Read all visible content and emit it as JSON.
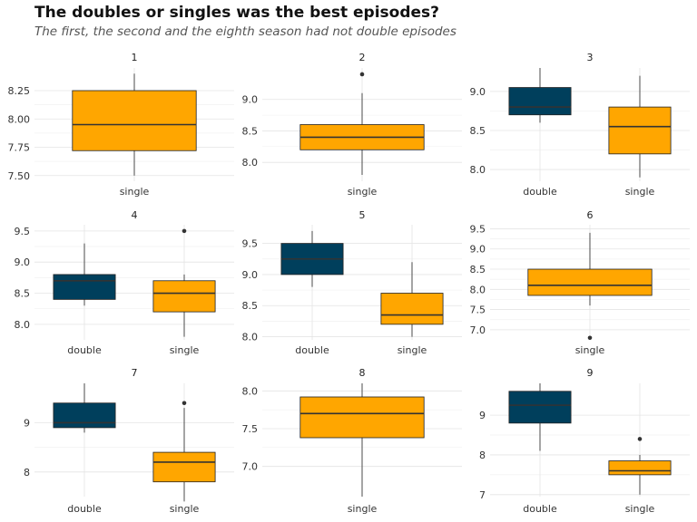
{
  "title": "The doubles or singles was the best episodes?",
  "subtitle": "The first, the second and the eighth season had not double episodes",
  "colors": {
    "double": "#003f5c",
    "single": "#ffa600"
  },
  "chart_data": {
    "type": "boxplot",
    "facets": [
      {
        "label": "1",
        "ylim": [
          7.45,
          8.45
        ],
        "yticks": [
          "7.50",
          "7.75",
          "8.00",
          "8.25"
        ],
        "boxes": [
          {
            "group": "single",
            "min": 7.5,
            "q1": 7.72,
            "median": 7.95,
            "q3": 8.25,
            "max": 8.4,
            "outliers": []
          }
        ]
      },
      {
        "label": "2",
        "ylim": [
          7.7,
          9.5
        ],
        "yticks": [
          "8.0",
          "8.5",
          "9.0"
        ],
        "boxes": [
          {
            "group": "single",
            "min": 7.8,
            "q1": 8.2,
            "median": 8.4,
            "q3": 8.6,
            "max": 9.1,
            "outliers": [
              9.4
            ]
          }
        ]
      },
      {
        "label": "3",
        "ylim": [
          7.85,
          9.3
        ],
        "yticks": [
          "8.0",
          "8.5",
          "9.0"
        ],
        "boxes": [
          {
            "group": "double",
            "min": 8.6,
            "q1": 8.7,
            "median": 8.8,
            "q3": 9.05,
            "max": 9.3,
            "outliers": []
          },
          {
            "group": "single",
            "min": 7.9,
            "q1": 8.2,
            "median": 8.55,
            "q3": 8.8,
            "max": 9.2,
            "outliers": []
          }
        ]
      },
      {
        "label": "4",
        "ylim": [
          7.75,
          9.6
        ],
        "yticks": [
          "8.0",
          "8.5",
          "9.0",
          "9.5"
        ],
        "boxes": [
          {
            "group": "double",
            "min": 8.3,
            "q1": 8.4,
            "median": 8.7,
            "q3": 8.8,
            "max": 9.3,
            "outliers": []
          },
          {
            "group": "single",
            "min": 7.8,
            "q1": 8.2,
            "median": 8.5,
            "q3": 8.7,
            "max": 8.8,
            "outliers": [
              9.5
            ]
          }
        ]
      },
      {
        "label": "5",
        "ylim": [
          7.95,
          9.8
        ],
        "yticks": [
          "8.0",
          "8.5",
          "9.0",
          "9.5"
        ],
        "boxes": [
          {
            "group": "double",
            "min": 8.8,
            "q1": 9.0,
            "median": 9.25,
            "q3": 9.5,
            "max": 9.7,
            "outliers": []
          },
          {
            "group": "single",
            "min": 8.0,
            "q1": 8.2,
            "median": 8.35,
            "q3": 8.7,
            "max": 9.2,
            "outliers": []
          }
        ]
      },
      {
        "label": "6",
        "ylim": [
          6.75,
          9.6
        ],
        "yticks": [
          "7.0",
          "7.5",
          "8.0",
          "8.5",
          "9.0",
          "9.5"
        ],
        "boxes": [
          {
            "group": "single",
            "min": 7.6,
            "q1": 7.85,
            "median": 8.1,
            "q3": 8.5,
            "max": 9.4,
            "outliers": [
              6.8
            ]
          }
        ]
      },
      {
        "label": "7",
        "ylim": [
          7.5,
          9.8
        ],
        "yticks": [
          "8",
          "9"
        ],
        "boxes": [
          {
            "group": "double",
            "min": 8.8,
            "q1": 8.9,
            "median": 9.0,
            "q3": 9.4,
            "max": 9.8,
            "outliers": []
          },
          {
            "group": "single",
            "min": 7.4,
            "q1": 7.8,
            "median": 8.2,
            "q3": 8.4,
            "max": 9.3,
            "outliers": [
              9.4
            ]
          }
        ]
      },
      {
        "label": "8",
        "ylim": [
          6.6,
          8.1
        ],
        "yticks": [
          "7.0",
          "7.5",
          "8.0"
        ],
        "boxes": [
          {
            "group": "single",
            "min": 6.6,
            "q1": 7.38,
            "median": 7.7,
            "q3": 7.92,
            "max": 8.1,
            "outliers": []
          }
        ]
      },
      {
        "label": "9",
        "ylim": [
          6.95,
          9.8
        ],
        "yticks": [
          "7",
          "8",
          "9"
        ],
        "boxes": [
          {
            "group": "double",
            "min": 8.1,
            "q1": 8.8,
            "median": 9.25,
            "q3": 9.6,
            "max": 9.8,
            "outliers": []
          },
          {
            "group": "single",
            "min": 7.0,
            "q1": 7.5,
            "median": 7.6,
            "q3": 7.85,
            "max": 8.0,
            "outliers": [
              8.4
            ]
          }
        ]
      }
    ]
  }
}
